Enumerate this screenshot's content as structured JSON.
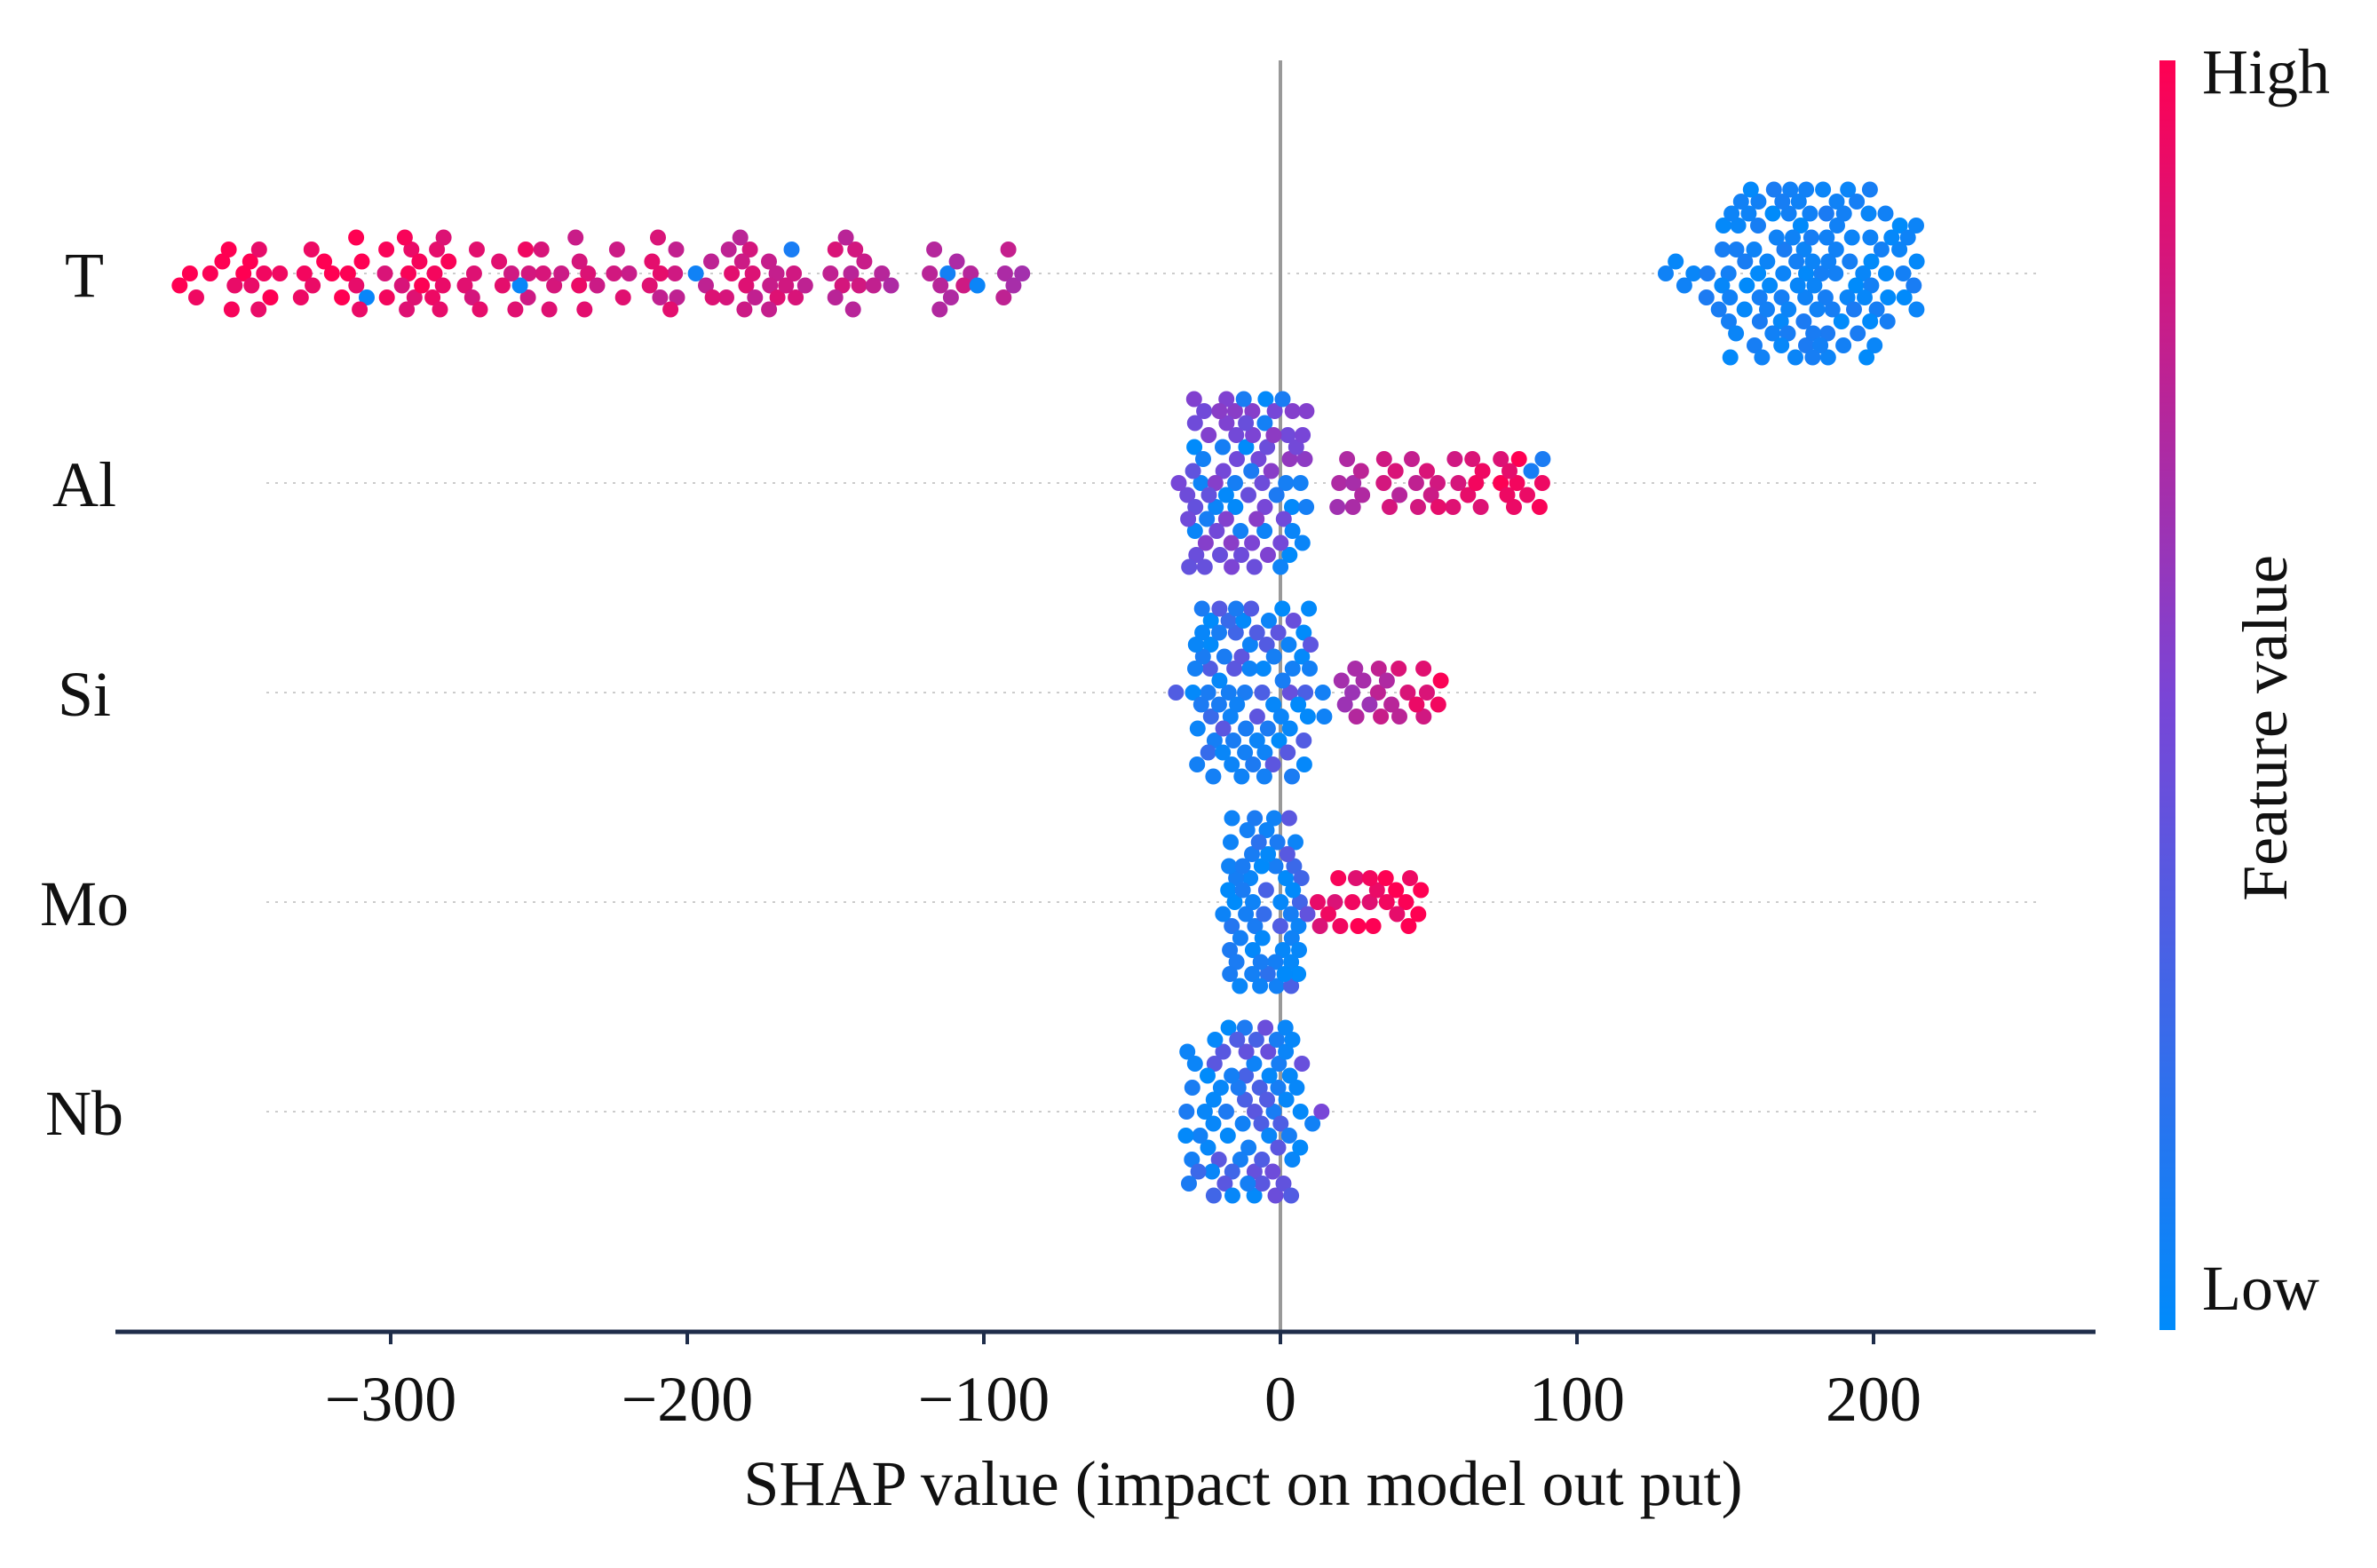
{
  "chart_data": {
    "type": "scatter",
    "subtype": "shap-beeswarm",
    "title": "",
    "xlabel": "SHAP value (impact on model out put)",
    "ylabel": "",
    "xlim": [
      -400,
      280
    ],
    "xticks": [
      -300,
      -200,
      -100,
      0,
      100,
      200
    ],
    "xtick_labels": [
      "−300",
      "−200",
      "−100",
      "0",
      "100",
      "200"
    ],
    "features": [
      {
        "name": "T",
        "clusters": [
          {
            "from": -375,
            "to": -85,
            "n": 150,
            "spread": 0.45,
            "color_from": 1.0,
            "color_to": 0.72,
            "blue_frac": 0.04
          },
          {
            "from": 125,
            "to": 232,
            "n": 170,
            "spread": 1.0,
            "color_from": 0.0,
            "color_to": 0.05,
            "blue_frac": 1.0
          }
        ]
      },
      {
        "name": "Al",
        "clusters": [
          {
            "from": -40,
            "to": 18,
            "n": 200,
            "spread": 1.0,
            "color_from": 0.45,
            "color_to": 0.55,
            "blue_frac": 0.45
          },
          {
            "from": 18,
            "to": 90,
            "n": 70,
            "spread": 0.35,
            "color_from": 0.7,
            "color_to": 1.0,
            "blue_frac": 0.05
          }
        ]
      },
      {
        "name": "Si",
        "clusters": [
          {
            "from": -40,
            "to": 20,
            "n": 230,
            "spread": 1.0,
            "color_from": 0.25,
            "color_to": 0.4,
            "blue_frac": 0.65
          },
          {
            "from": 20,
            "to": 55,
            "n": 40,
            "spread": 0.3,
            "color_from": 0.6,
            "color_to": 0.95,
            "blue_frac": 0.05
          }
        ]
      },
      {
        "name": "Mo",
        "clusters": [
          {
            "from": -22,
            "to": 12,
            "n": 230,
            "spread": 1.0,
            "color_from": 0.15,
            "color_to": 0.35,
            "blue_frac": 0.7
          },
          {
            "from": 12,
            "to": 48,
            "n": 40,
            "spread": 0.25,
            "color_from": 0.9,
            "color_to": 1.0,
            "blue_frac": 0.0
          }
        ]
      },
      {
        "name": "Nb",
        "clusters": [
          {
            "from": -38,
            "to": 16,
            "n": 200,
            "spread": 1.0,
            "color_from": 0.25,
            "color_to": 0.45,
            "blue_frac": 0.6
          }
        ]
      }
    ],
    "colorbar": {
      "label": "Feature value",
      "high_label": "High",
      "low_label": "Low",
      "high_color": "#ff0052",
      "low_color": "#008bfb"
    },
    "grid": false,
    "legend": "right colorbar"
  }
}
